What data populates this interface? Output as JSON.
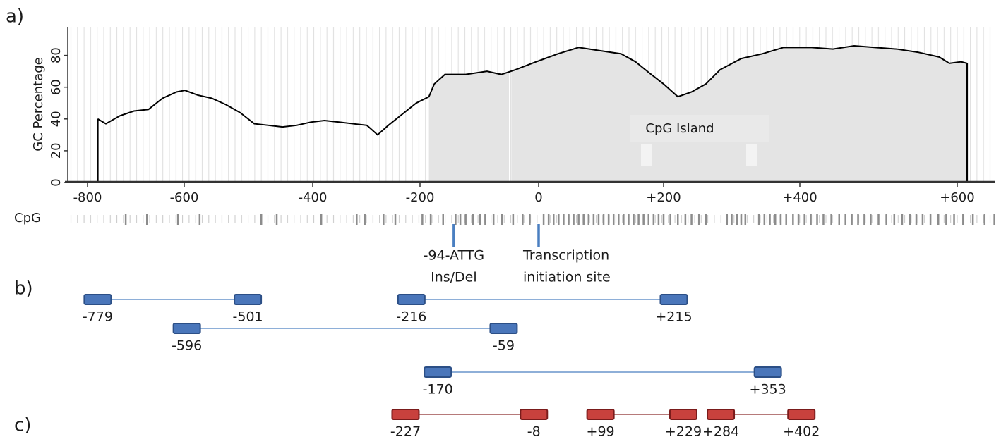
{
  "panel_labels": [
    "a)",
    "b)",
    "c)"
  ],
  "chart_data": {
    "type": "line",
    "y_label": "GC Percentage",
    "x": [
      -779,
      -762,
      -733,
      -704,
      -674,
      -645,
      -616,
      -599,
      -579,
      -557,
      -535,
      -513,
      -491,
      -469,
      -447,
      -425,
      -403,
      -378,
      -351,
      -325,
      -299,
      -279,
      -259,
      -233,
      -207,
      -185,
      -176,
      -158,
      -123,
      -87,
      -63,
      -39,
      -4,
      31,
      64,
      98,
      132,
      155,
      177,
      200,
      221,
      241,
      262,
      283,
      314,
      345,
      376,
      415,
      442,
      469,
      496,
      523,
      550,
      577,
      590,
      604,
      610
    ],
    "values": [
      40,
      37,
      42,
      45,
      46,
      53,
      57,
      58,
      55,
      53,
      49,
      44,
      37,
      36,
      35,
      36,
      38,
      39,
      38,
      37,
      36,
      30,
      36,
      43,
      50,
      54,
      62,
      68,
      68,
      70,
      68,
      71,
      76,
      81,
      85,
      83,
      81,
      76,
      69,
      62,
      54,
      57,
      62,
      71,
      78,
      81,
      85,
      85,
      84,
      86,
      85,
      84,
      82,
      79,
      75,
      76,
      75
    ],
    "color": "#000000",
    "region_color": "#e4e4e4",
    "regions": [
      [
        -185,
        -50
      ],
      [
        -46,
        610
      ]
    ],
    "region_label": "CpG Island",
    "xlim": [
      -841,
      639
    ],
    "xticks": [
      -800,
      -600,
      -400,
      -200,
      0,
      {
        "value": 200,
        "label": "+200"
      },
      {
        "value": 400,
        "label": "+400"
      },
      {
        "value": 600,
        "label": "+600"
      }
    ],
    "ylim": [
      0,
      98
    ],
    "yticks": [
      0,
      20,
      40,
      60,
      80
    ],
    "grid": true
  },
  "cpg_track": {
    "label": "CpG",
    "sites": [
      -721,
      -677,
      -613,
      -576,
      -480,
      -456,
      -384,
      -318,
      -303,
      -268,
      -246,
      -196,
      -182,
      -161,
      -140,
      -132,
      -123,
      -111,
      -99,
      -90,
      -76,
      -62,
      -43,
      -27,
      -15,
      8,
      16,
      24,
      32,
      40,
      48,
      56,
      64,
      72,
      80,
      88,
      96,
      104,
      112,
      120,
      128,
      136,
      144,
      152,
      160,
      168,
      176,
      184,
      192,
      200,
      210,
      221,
      232,
      241,
      252,
      262,
      293,
      300,
      308,
      314,
      320,
      340,
      348,
      356,
      364,
      372,
      380,
      390,
      398,
      406,
      414,
      422,
      430,
      440,
      450,
      458,
      466,
      474,
      482,
      490,
      500,
      510,
      520,
      530,
      540,
      548,
      556,
      566,
      576,
      586,
      596,
      606,
      616,
      628,
      638
    ]
  },
  "annotations": [
    {
      "x": -143,
      "lines": [
        "-94-ATTG",
        "Ins/Del"
      ]
    },
    {
      "x": 0,
      "lines": [
        "Transcription",
        "initiation site"
      ]
    }
  ],
  "primers": {
    "b": [
      [
        {
          "from": -779,
          "to": -501
        },
        {
          "from": -216,
          "to": {
            "value": 215,
            "label": "+215"
          }
        }
      ],
      [
        {
          "from": -596,
          "to": -59
        }
      ],
      [
        {
          "from": -170,
          "to": {
            "value": 353,
            "label": "+353"
          }
        }
      ]
    ],
    "c": [
      [
        {
          "from": -227,
          "to": -8
        },
        {
          "from": {
            "value": 99,
            "label": "+99"
          },
          "to": {
            "value": 229,
            "label": "+229"
          }
        },
        {
          "from": {
            "value": 284,
            "label": "+284"
          },
          "to": {
            "value": 402,
            "label": "+402"
          }
        }
      ]
    ]
  }
}
